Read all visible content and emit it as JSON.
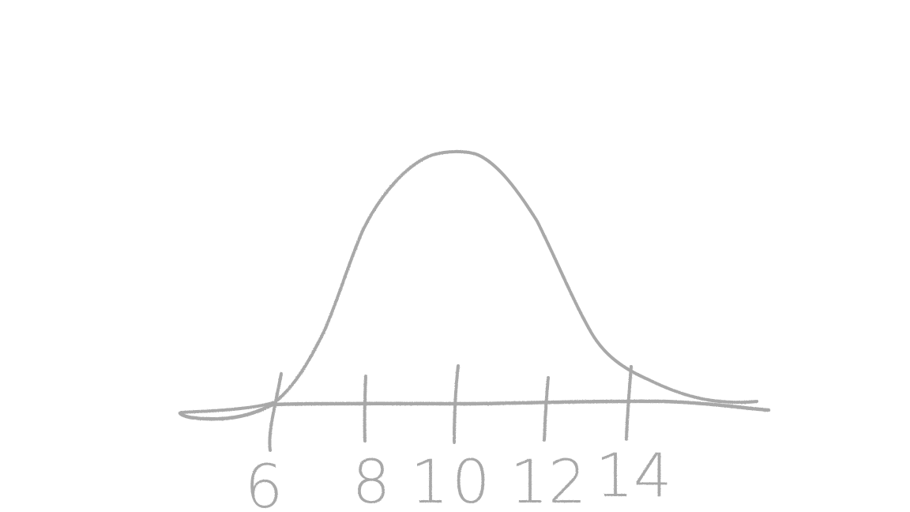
{
  "sketch": {
    "ink_color": "#a8a8a8",
    "curve_type": "bell-curve",
    "tick_labels": [
      {
        "id": "tick-6",
        "text": "6"
      },
      {
        "id": "tick-8",
        "text": "8"
      },
      {
        "id": "tick-10",
        "text": "10"
      },
      {
        "id": "tick-12",
        "text": "12"
      },
      {
        "id": "tick-14",
        "text": "14"
      }
    ]
  }
}
